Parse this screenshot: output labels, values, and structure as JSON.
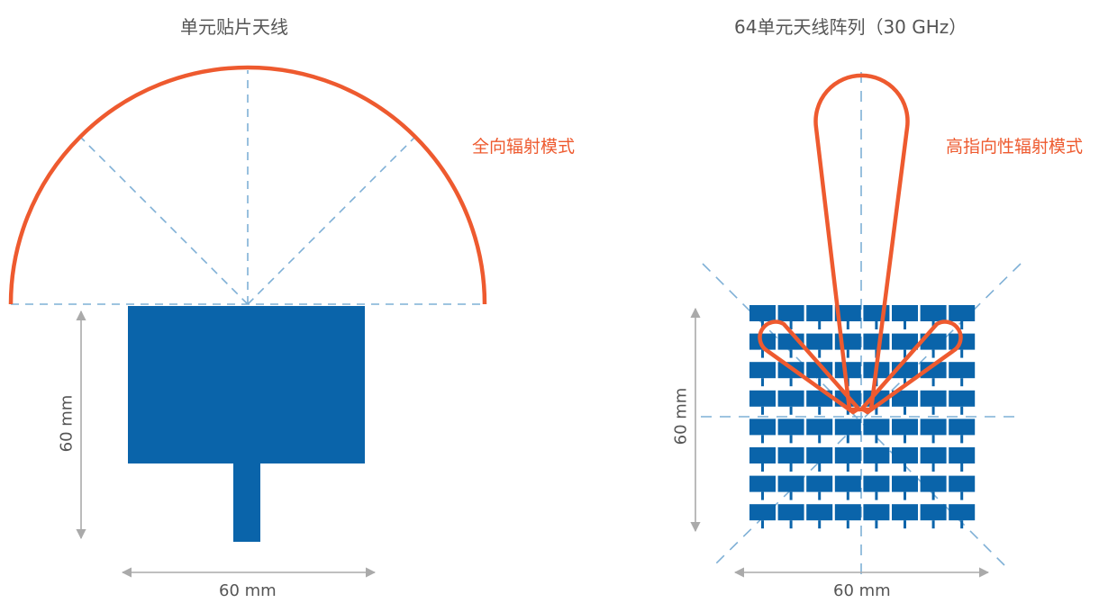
{
  "left_diagram": {
    "title": "单元贴片天线",
    "pattern_label": "全向辐射模式",
    "width_label": "60 mm",
    "height_label": "60 mm"
  },
  "right_diagram": {
    "title": "64单元天线阵列（30 GHz）",
    "pattern_label": "高指向性辐射模式",
    "width_label": "60 mm",
    "height_label": "60 mm",
    "array_rows": 8,
    "array_cols": 8
  },
  "colors": {
    "antenna": "#0a64aa",
    "pattern": "#ee5a2f",
    "guide": "#7fb0d6",
    "dimension": "#aaaaaa",
    "text": "#555555"
  }
}
